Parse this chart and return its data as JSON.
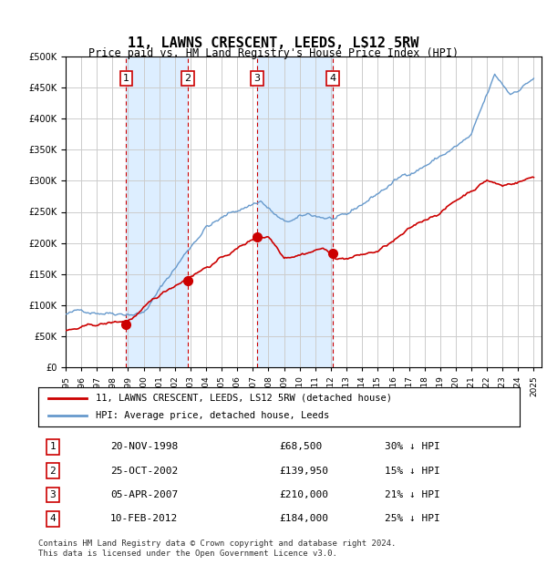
{
  "title": "11, LAWNS CRESCENT, LEEDS, LS12 5RW",
  "subtitle": "Price paid vs. HM Land Registry's House Price Index (HPI)",
  "sales": [
    {
      "date": "1998-11-20",
      "price": 68500,
      "label": "1"
    },
    {
      "date": "2002-10-25",
      "price": 139950,
      "label": "2"
    },
    {
      "date": "2007-04-05",
      "price": 210000,
      "label": "3"
    },
    {
      "date": "2012-02-10",
      "price": 184000,
      "label": "4"
    }
  ],
  "sale_labels": [
    "1   20-NOV-1998        £68,500       30% ↓ HPI",
    "2   25-OCT-2002      £139,950       15% ↓ HPI",
    "3   05-APR-2007      £210,000       21% ↓ HPI",
    "4   10-FEB-2012      £184,000       25% ↓ HPI"
  ],
  "table_rows": [
    [
      "1",
      "20-NOV-1998",
      "£68,500",
      "30% ↓ HPI"
    ],
    [
      "2",
      "25-OCT-2002",
      "£139,950",
      "15% ↓ HPI"
    ],
    [
      "3",
      "05-APR-2007",
      "£210,000",
      "21% ↓ HPI"
    ],
    [
      "4",
      "10-FEB-2012",
      "£184,000",
      "25% ↓ HPI"
    ]
  ],
  "legend_line1": "11, LAWNS CRESCENT, LEEDS, LS12 5RW (detached house)",
  "legend_line2": "HPI: Average price, detached house, Leeds",
  "footer": "Contains HM Land Registry data © Crown copyright and database right 2024.\nThis data is licensed under the Open Government Licence v3.0.",
  "hpi_color": "#6699cc",
  "price_color": "#cc0000",
  "sale_dot_color": "#cc0000",
  "vline_color": "#cc0000",
  "shade_color": "#ddeeff",
  "ylim": [
    0,
    500000
  ],
  "yticks": [
    0,
    50000,
    100000,
    150000,
    200000,
    250000,
    300000,
    350000,
    400000,
    450000,
    500000
  ],
  "background_color": "#ffffff",
  "grid_color": "#cccccc"
}
